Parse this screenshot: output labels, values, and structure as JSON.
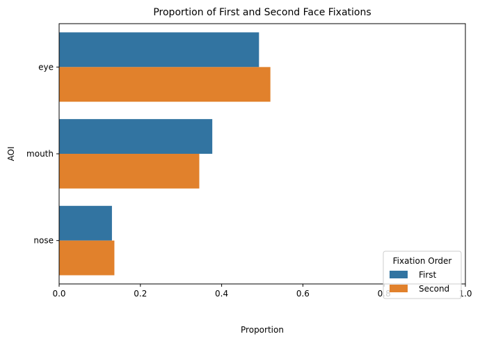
{
  "chart_data": {
    "type": "bar",
    "orientation": "horizontal",
    "title": "Proportion of First and Second Face Fixations",
    "xlabel": "Proportion",
    "ylabel": "AOI",
    "categories": [
      "eye",
      "mouth",
      "nose"
    ],
    "series": [
      {
        "name": "First",
        "color": "#3274a1",
        "values": [
          0.492,
          0.377,
          0.13
        ]
      },
      {
        "name": "Second",
        "color": "#e1812c",
        "values": [
          0.52,
          0.345,
          0.136
        ]
      }
    ],
    "xlim": [
      0,
      1.0
    ],
    "xticks": [
      {
        "value": 0.0,
        "label": "0.0"
      },
      {
        "value": 0.2,
        "label": "0.2"
      },
      {
        "value": 0.4,
        "label": "0.4"
      },
      {
        "value": 0.6,
        "label": "0.6"
      },
      {
        "value": 0.8,
        "label": "0.8"
      },
      {
        "value": 1.0,
        "label": "1.0"
      }
    ],
    "grid": false,
    "legend": {
      "title": "Fixation Order",
      "placement": "bottom-right",
      "entries": [
        "First",
        "Second"
      ]
    }
  }
}
